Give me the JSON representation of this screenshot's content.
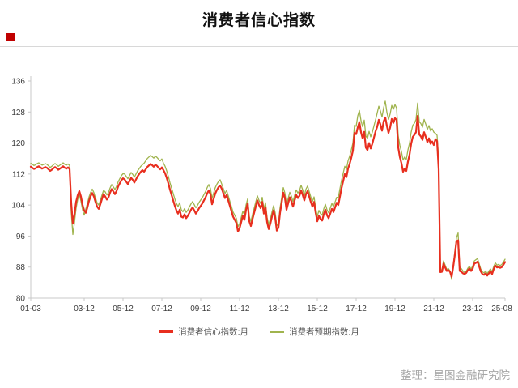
{
  "page": {
    "title": "消费者信心指数",
    "source": "整理：星图金融研究院",
    "accent_color": "#c00000"
  },
  "legend": [
    {
      "label": "消费者信心指数:月",
      "color": "#e82f1f"
    },
    {
      "label": "消费者预期指数:月",
      "color": "#a0b44e"
    }
  ],
  "chart_data": {
    "type": "line",
    "title": "消费者信心指数",
    "xlabel": "",
    "ylabel": "",
    "grid": false,
    "legend_position": "bottom",
    "ylim": [
      80,
      136
    ],
    "y_ticks": [
      80,
      88,
      96,
      104,
      112,
      120,
      128,
      136
    ],
    "x_start": "2001-03",
    "x_end": "2025-08",
    "x_tick_labels": [
      "01-03",
      "03-12",
      "05-12",
      "07-12",
      "09-12",
      "11-12",
      "13-12",
      "15-12",
      "17-12",
      "19-12",
      "21-12",
      "23-12",
      "25-08"
    ],
    "x_tick_indices": [
      0,
      33,
      57,
      81,
      105,
      129,
      153,
      177,
      201,
      225,
      249,
      273,
      293
    ],
    "series": [
      {
        "name": "消费者信心指数:月",
        "color": "#e82f1f",
        "values": [
          113.9,
          113.6,
          113.3,
          113.5,
          113.8,
          114,
          113.7,
          113.4,
          113.6,
          113.8,
          113.6,
          113.2,
          112.8,
          113.1,
          113.5,
          113.8,
          113.5,
          113.1,
          113.4,
          113.7,
          114,
          113.6,
          113.4,
          113.7,
          113.3,
          104.5,
          99.2,
          101.6,
          104.8,
          106.5,
          107.6,
          106.2,
          104,
          102.6,
          102,
          103.4,
          105.1,
          106.3,
          107.1,
          106.2,
          104.8,
          103.6,
          103,
          104.2,
          105.6,
          106.8,
          106.2,
          105.4,
          106,
          107.2,
          108.1,
          107.5,
          106.8,
          107.6,
          108.8,
          109.6,
          110.4,
          110.9,
          110.6,
          110,
          109.4,
          110.2,
          111,
          110.5,
          109.8,
          110.6,
          111.4,
          112,
          112.6,
          113,
          112.6,
          113.2,
          113.8,
          114.2,
          114.6,
          114.3,
          113.9,
          114.4,
          114.1,
          113.6,
          113.2,
          113.7,
          113,
          112.2,
          111,
          109.6,
          108,
          106.6,
          105.2,
          103.8,
          102.6,
          101.8,
          102.8,
          101,
          100.8,
          101.6,
          100.6,
          101.2,
          102,
          102.8,
          103.4,
          102.6,
          101.8,
          102.4,
          103.2,
          103.8,
          104.4,
          105.2,
          106,
          107,
          107.8,
          106.8,
          104.2,
          105.6,
          107,
          107.9,
          108.6,
          109,
          108.2,
          107,
          105.8,
          106.6,
          105.2,
          103.8,
          102.4,
          101,
          100.2,
          99.4,
          97.2,
          98,
          99.6,
          101.2,
          100.2,
          102.8,
          104.4,
          99.8,
          98.6,
          100.4,
          102,
          103.6,
          105.2,
          104,
          103.2,
          104.8,
          101.8,
          103.4,
          99.6,
          97.8,
          99.2,
          101,
          102.6,
          100.8,
          97.4,
          98.2,
          102,
          104.6,
          107.2,
          105.8,
          102.8,
          104.4,
          106,
          105,
          103.6,
          105.2,
          106.6,
          105.8,
          106.4,
          107.8,
          106.6,
          105.2,
          106.8,
          107.6,
          106.2,
          104.8,
          103.6,
          104.8,
          102,
          99.8,
          101.2,
          100.4,
          100,
          101.6,
          102.8,
          101.4,
          100.6,
          101.8,
          103,
          102.2,
          103.4,
          104.6,
          104,
          106.2,
          108.4,
          110.2,
          112,
          111.2,
          113.4,
          114.6,
          116.2,
          118,
          122.6,
          122.3,
          124,
          125.4,
          122.8,
          121.2,
          122.9,
          118.8,
          118.2,
          120,
          118.6,
          119.8,
          121.4,
          123,
          124.2,
          126,
          124.8,
          123.2,
          125.6,
          126.6,
          124.4,
          122.6,
          124,
          126.2,
          125.2,
          126.4,
          126,
          118.9,
          116.4,
          114.8,
          112.6,
          113.4,
          112.8,
          115.2,
          117,
          119.8,
          121.6,
          122.1,
          122.8,
          127,
          122.2,
          121.7,
          120.8,
          122.8,
          121.6,
          120.2,
          121.2,
          119.8,
          120.4,
          119.5,
          121,
          120.5,
          113.2,
          86.7,
          86.8,
          88.9,
          87.9,
          87,
          87.2,
          86.8,
          85.5,
          88.1,
          91.2,
          94.7,
          94.9,
          87,
          86.8,
          86.4,
          86.2,
          86.5,
          87.2,
          87.6,
          87,
          87.6,
          88.9,
          89.1,
          89.4,
          88.2,
          86.9,
          86.2,
          86,
          86.4,
          85.8,
          86.4,
          86.9,
          86.2,
          87.5,
          88.4,
          87.9,
          88,
          87.8,
          88,
          88.6,
          89.3
        ]
      },
      {
        "name": "消费者预期指数:月",
        "color": "#a0b44e",
        "values": [
          114.8,
          114.5,
          114.2,
          114.4,
          114.7,
          114.9,
          114.6,
          114.3,
          114.5,
          114.7,
          114.5,
          114.1,
          113.7,
          114,
          114.4,
          114.7,
          114.4,
          114,
          114.3,
          114.6,
          114.9,
          114.5,
          114.3,
          114.6,
          114.2,
          102,
          96.4,
          99.5,
          103.2,
          105.4,
          106.8,
          105,
          102.8,
          101.4,
          103,
          104.4,
          106.1,
          107.3,
          108.1,
          107.2,
          105.8,
          104.6,
          104,
          105.2,
          106.6,
          107.8,
          107.4,
          106.6,
          107.2,
          108.4,
          109.3,
          108.7,
          108,
          108.8,
          110,
          110.8,
          111.6,
          112.1,
          112,
          111.4,
          110.8,
          111.6,
          112.4,
          111.9,
          111.2,
          112,
          112.8,
          113.4,
          114,
          114.4,
          114.8,
          115.4,
          116,
          116.4,
          116.8,
          116.5,
          116.1,
          116.6,
          116.3,
          115.8,
          115.4,
          115.9,
          114.8,
          114,
          112.8,
          111.4,
          109.8,
          108.4,
          107,
          105.6,
          104.4,
          103.6,
          104.6,
          102.8,
          102.3,
          103.1,
          102.1,
          102.7,
          103.5,
          104.3,
          104.9,
          104.1,
          103.3,
          103.9,
          104.7,
          105.3,
          105.9,
          106.7,
          107.5,
          108.5,
          109.3,
          108.3,
          105.7,
          107.1,
          108.5,
          109.4,
          110.1,
          110.5,
          109.4,
          108.2,
          107,
          107.8,
          106.4,
          105,
          103.6,
          102.2,
          101.4,
          100.6,
          98.4,
          99.2,
          100.8,
          102.4,
          101.4,
          104,
          105.6,
          101,
          99.8,
          101.6,
          103.2,
          104.8,
          106.4,
          105.2,
          104.4,
          106,
          103,
          104.6,
          100.8,
          99,
          100.4,
          102.2,
          103.8,
          102,
          98.6,
          99.4,
          103.3,
          105.9,
          108.5,
          107.1,
          104.1,
          105.7,
          107.3,
          106.3,
          104.9,
          106.5,
          107.9,
          107.1,
          107.7,
          109.1,
          107.9,
          106.5,
          108.1,
          108.9,
          107.5,
          106.1,
          104.9,
          106.1,
          103.3,
          101.1,
          102.6,
          101.8,
          101.4,
          103,
          104.2,
          102.8,
          102,
          103.2,
          104.4,
          103.6,
          104.8,
          106,
          106,
          108.2,
          110.4,
          112.2,
          114,
          113.2,
          115.4,
          116.6,
          118.2,
          120,
          124.6,
          124.3,
          127,
          128.4,
          125.8,
          124.2,
          125.9,
          121.8,
          121.2,
          123,
          121.6,
          122.8,
          124.4,
          126,
          127.7,
          129.5,
          128.3,
          126.7,
          129.1,
          130.8,
          127.9,
          126.1,
          127.5,
          129.7,
          128.7,
          129.9,
          129,
          121.9,
          119.4,
          117.8,
          115.6,
          116.4,
          115.8,
          118.2,
          120,
          122.8,
          124.6,
          125.1,
          126.1,
          130.3,
          125.5,
          125,
          124.1,
          126.1,
          124.9,
          123.5,
          124.5,
          123.1,
          123.7,
          122.8,
          122.5,
          122,
          115.8,
          87.4,
          87.2,
          89.6,
          88.5,
          87.4,
          87.6,
          87,
          84.8,
          88.5,
          92,
          95.6,
          96.8,
          88,
          87.6,
          87,
          86.6,
          86.9,
          87.7,
          88.2,
          87.5,
          88.3,
          89.6,
          89.9,
          90.2,
          88.9,
          87.5,
          86.8,
          86.5,
          87,
          86.3,
          87,
          87.5,
          86.8,
          88.2,
          89.1,
          88.5,
          88.7,
          88.4,
          88.7,
          89.3,
          90
        ]
      }
    ]
  }
}
